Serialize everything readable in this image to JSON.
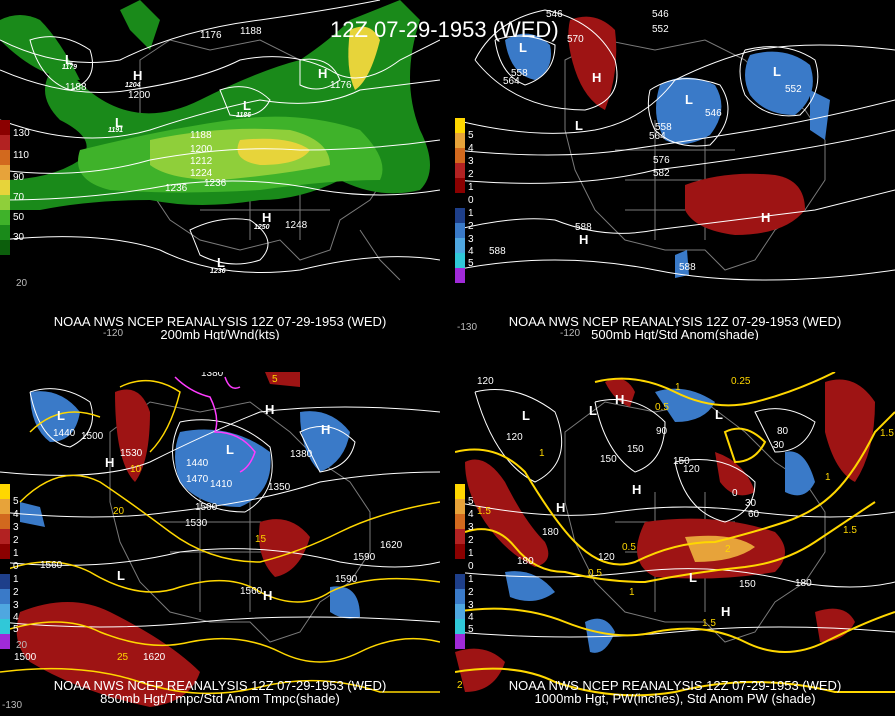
{
  "title": "12Z 07-29-1953 (WED)",
  "colors": {
    "background": "#000000",
    "land_outline": "#7a7a7a",
    "contour": "#ffffff",
    "accent_yellow": "#ffd700"
  },
  "panels": [
    {
      "caption_line1": "NOAA NWS NCEP REANALYSIS 12Z 07-29-1953 (WED)",
      "caption_line2": "200mb Hgt/Wnd(kts)",
      "legend": [
        "130",
        "110",
        "90",
        "70",
        "50",
        "30"
      ],
      "lons": [
        "-120",
        "20"
      ],
      "contour_labels": [
        "1176",
        "1188",
        "1188",
        "1200",
        "1188",
        "1200",
        "1212",
        "1224",
        "1236",
        "1248",
        "1236",
        "1176",
        "1179",
        "1204",
        "1191",
        "1186",
        "1250",
        "1236"
      ],
      "centers": [
        "L",
        "H",
        "L",
        "L",
        "H",
        "L",
        "H"
      ]
    },
    {
      "caption_line1": "NOAA NWS NCEP REANALYSIS 12Z 07-29-1953 (WED)",
      "caption_line2": "500mb Hgt/Std Anom(shade)",
      "legend": [
        "5",
        "4",
        "3",
        "2",
        "1",
        "0",
        "1",
        "2",
        "3",
        "4",
        "5"
      ],
      "lons": [
        "-130",
        "-120"
      ],
      "contour_labels": [
        "546",
        "558",
        "570",
        "552",
        "564",
        "546",
        "546",
        "552",
        "558",
        "564",
        "576",
        "582",
        "588",
        "588",
        "588"
      ],
      "centers": [
        "L",
        "H",
        "L",
        "L",
        "L",
        "H",
        "H"
      ]
    },
    {
      "caption_line1": "NOAA NWS NCEP REANALYSIS 12Z 07-29-1953 (WED)",
      "caption_line2": "850mb Hgt/Tmpc/Std Anom Tmpc(shade)",
      "legend": [
        "5",
        "4",
        "3",
        "2",
        "1",
        "0",
        "1",
        "2",
        "3",
        "4",
        "5"
      ],
      "lons": [
        "-130",
        "20"
      ],
      "contour_labels": [
        "1380",
        "1440",
        "1500",
        "1530",
        "1440",
        "1470",
        "1410",
        "1350",
        "1380",
        "1500",
        "1530",
        "1560",
        "1590",
        "1620",
        "1560",
        "1500",
        "1590",
        "1620"
      ],
      "temp_labels": [
        "5",
        "10",
        "15",
        "20",
        "25"
      ],
      "centers": [
        "L",
        "H",
        "L",
        "H",
        "H",
        "L",
        "H"
      ]
    },
    {
      "caption_line1": "NOAA NWS NCEP REANALYSIS 12Z 07-29-1953 (WED)",
      "caption_line2": "1000mb Hgt, PW(inches), Std Anom PW (shade)",
      "legend": [
        "5",
        "4",
        "3",
        "2",
        "1",
        "0",
        "1",
        "2",
        "3",
        "4",
        "5"
      ],
      "contour_labels": [
        "120",
        "120",
        "150",
        "90",
        "120",
        "150",
        "180",
        "180",
        "120",
        "150",
        "180",
        "60",
        "30",
        "0",
        "80",
        "30",
        "150"
      ],
      "pw_labels": [
        "1.5",
        "1",
        "0.5",
        "0.5",
        "1",
        "1.5",
        "2",
        "0.5",
        "1",
        "0.25",
        "1.5",
        "1.5",
        "1",
        "2"
      ],
      "centers": [
        "L",
        "L",
        "H",
        "H",
        "L",
        "H",
        "L",
        "H"
      ]
    }
  ]
}
